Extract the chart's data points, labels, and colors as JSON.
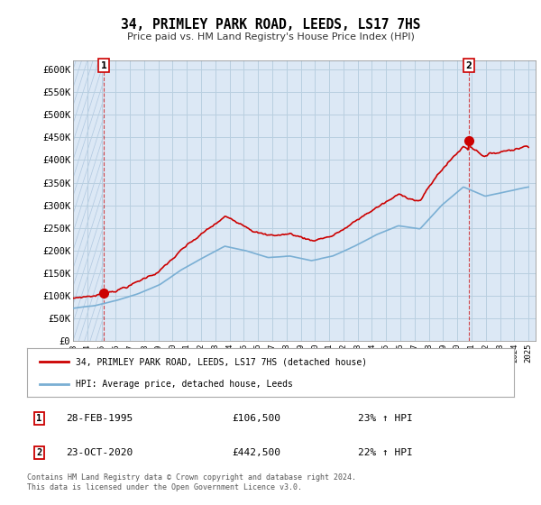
{
  "title": "34, PRIMLEY PARK ROAD, LEEDS, LS17 7HS",
  "subtitle": "Price paid vs. HM Land Registry's House Price Index (HPI)",
  "ylim": [
    0,
    620000
  ],
  "yticks": [
    0,
    50000,
    100000,
    150000,
    200000,
    250000,
    300000,
    350000,
    400000,
    450000,
    500000,
    550000,
    600000
  ],
  "ytick_labels": [
    "£0",
    "£50K",
    "£100K",
    "£150K",
    "£200K",
    "£250K",
    "£300K",
    "£350K",
    "£400K",
    "£450K",
    "£500K",
    "£550K",
    "£600K"
  ],
  "background_color": "#dce8f5",
  "grid_color": "#b8cfe0",
  "property_color": "#cc0000",
  "hpi_color": "#7aafd4",
  "sale1_year": 1995.16,
  "sale1_price": 106500,
  "sale2_year": 2020.81,
  "sale2_price": 442500,
  "legend_label1": "34, PRIMLEY PARK ROAD, LEEDS, LS17 7HS (detached house)",
  "legend_label2": "HPI: Average price, detached house, Leeds",
  "transaction1_date": "28-FEB-1995",
  "transaction1_price": "£106,500",
  "transaction1_hpi": "23% ↑ HPI",
  "transaction2_date": "23-OCT-2020",
  "transaction2_price": "£442,500",
  "transaction2_hpi": "22% ↑ HPI",
  "footer": "Contains HM Land Registry data © Crown copyright and database right 2024.\nThis data is licensed under the Open Government Licence v3.0.",
  "xmin": 1993.0,
  "xmax": 2025.5
}
